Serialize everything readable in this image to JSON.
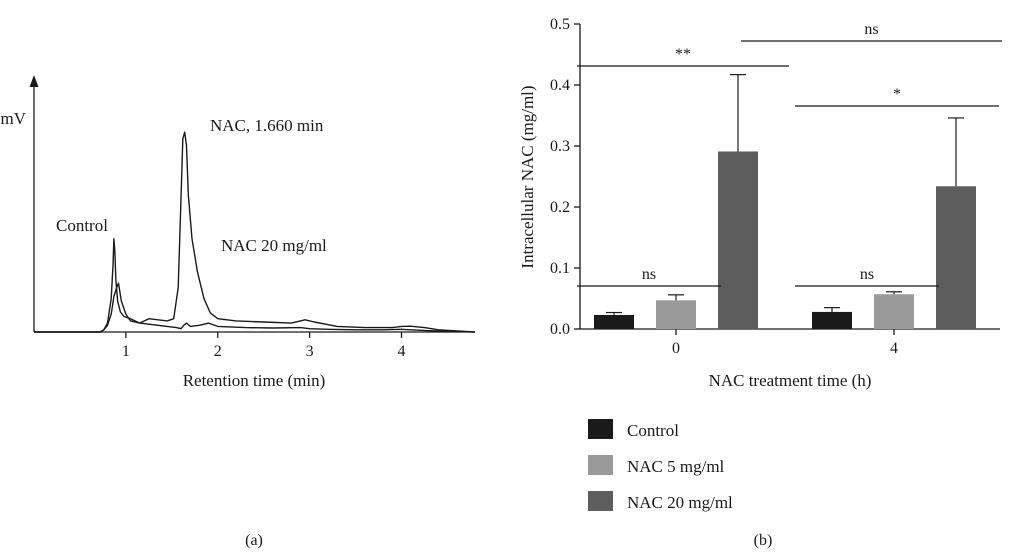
{
  "chart_data": [
    {
      "panel": "(a)",
      "type": "line",
      "xlabel": "Retention time (min)",
      "ylabel": "mV",
      "xlim": [
        0,
        4.8
      ],
      "xticks": [
        "1",
        "2",
        "3",
        "4"
      ],
      "annotations": [
        "NAC, 1.660 min",
        "Control",
        "NAC 20 mg/ml"
      ],
      "series": [
        {
          "name": "Control",
          "x": [
            0.0,
            0.72,
            0.76,
            0.8,
            0.84,
            0.86,
            0.87,
            0.88,
            0.89,
            0.91,
            0.94,
            0.98,
            1.05,
            1.15,
            1.25,
            1.35,
            1.45,
            1.55,
            1.6,
            1.63,
            1.66,
            1.7,
            1.8,
            1.9,
            2.0,
            2.3,
            2.6,
            2.9,
            3.0,
            3.2,
            3.5,
            3.8,
            4.0,
            4.1,
            4.3,
            4.5,
            4.8
          ],
          "y": [
            0.0,
            0.0,
            0.01,
            0.04,
            0.15,
            0.3,
            0.42,
            0.36,
            0.24,
            0.14,
            0.09,
            0.07,
            0.06,
            0.04,
            0.035,
            0.03,
            0.025,
            0.02,
            0.015,
            0.03,
            0.04,
            0.025,
            0.03,
            0.04,
            0.025,
            0.02,
            0.018,
            0.02,
            0.015,
            0.012,
            0.01,
            0.01,
            0.012,
            0.01,
            0.006,
            0.003,
            0.0
          ]
        },
        {
          "name": "NAC 20 mg/ml",
          "x": [
            0.0,
            0.72,
            0.76,
            0.8,
            0.84,
            0.87,
            0.9,
            0.92,
            0.95,
            1.0,
            1.05,
            1.15,
            1.25,
            1.35,
            1.45,
            1.52,
            1.57,
            1.6,
            1.62,
            1.64,
            1.66,
            1.68,
            1.72,
            1.78,
            1.85,
            1.92,
            2.0,
            2.2,
            2.5,
            2.8,
            2.9,
            2.95,
            3.05,
            3.3,
            3.6,
            3.9,
            4.0,
            4.1,
            4.25,
            4.4,
            4.8
          ],
          "y": [
            0.0,
            0.0,
            0.01,
            0.03,
            0.08,
            0.16,
            0.2,
            0.22,
            0.14,
            0.08,
            0.05,
            0.04,
            0.06,
            0.055,
            0.05,
            0.06,
            0.2,
            0.6,
            0.87,
            0.9,
            0.84,
            0.62,
            0.42,
            0.27,
            0.15,
            0.085,
            0.06,
            0.05,
            0.045,
            0.04,
            0.05,
            0.055,
            0.045,
            0.025,
            0.02,
            0.02,
            0.025,
            0.026,
            0.02,
            0.01,
            0.0
          ]
        }
      ]
    },
    {
      "panel": "(b)",
      "type": "bar",
      "xlabel": "NAC treatment time (h)",
      "ylabel": "Intracellular NAC (mg/ml)",
      "ylim": [
        0,
        0.5
      ],
      "yticks": [
        "0.0",
        "0.1",
        "0.2",
        "0.3",
        "0.4",
        "0.5"
      ],
      "categories": [
        "0",
        "4"
      ],
      "series": [
        {
          "name": "Control",
          "color": "#1a1a1a",
          "values": [
            0.023,
            0.028
          ],
          "errors": [
            0.004,
            0.007
          ]
        },
        {
          "name": "NAC 5 mg/ml",
          "color": "#9a9a9a",
          "values": [
            0.047,
            0.057
          ],
          "errors": [
            0.009,
            0.004
          ]
        },
        {
          "name": "NAC 20 mg/ml",
          "color": "#5d5d5d",
          "values": [
            0.291,
            0.234
          ],
          "errors": [
            0.126,
            0.112
          ]
        }
      ],
      "significance": [
        {
          "label": "ns",
          "from": [
            0,
            0
          ],
          "to": [
            0,
            1
          ]
        },
        {
          "label": "**",
          "from": [
            0,
            0
          ],
          "to": [
            0,
            2
          ]
        },
        {
          "label": "ns",
          "from": [
            1,
            0
          ],
          "to": [
            1,
            1
          ]
        },
        {
          "label": "*",
          "from": [
            1,
            0
          ],
          "to": [
            1,
            2
          ]
        },
        {
          "label": "ns",
          "from": [
            0,
            2
          ],
          "to": [
            1,
            2
          ]
        }
      ],
      "legend_position": "bottom"
    }
  ]
}
